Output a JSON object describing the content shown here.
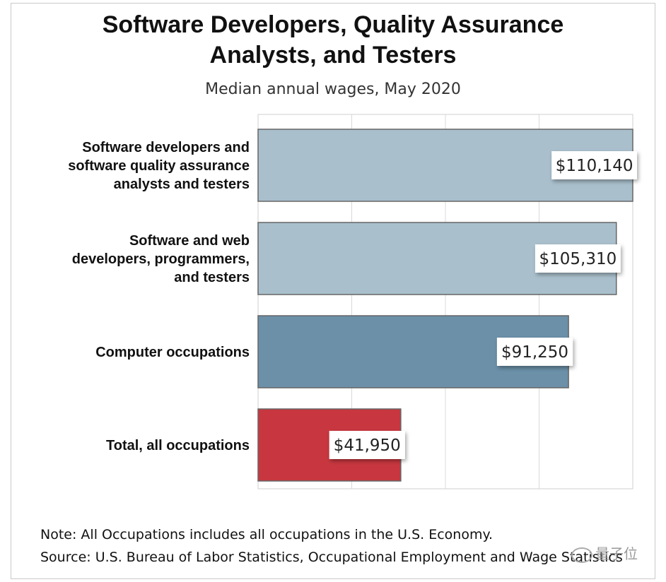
{
  "header": {
    "title_line1": "Software Developers, Quality Assurance",
    "title_line2": "Analysts, and Testers",
    "subtitle": "Median annual wages, May 2020"
  },
  "chart_data": {
    "type": "bar",
    "orientation": "horizontal",
    "title": "Software Developers, Quality Assurance Analysts, and Testers",
    "subtitle": "Median annual wages, May 2020",
    "categories": [
      [
        "Software developers and",
        "software quality assurance",
        "analysts and testers"
      ],
      [
        "Software and web",
        "developers, programmers,",
        "and testers"
      ],
      [
        "Computer occupations"
      ],
      [
        "Total, all occupations"
      ]
    ],
    "values": [
      110140,
      105310,
      91250,
      41950
    ],
    "value_labels": [
      "$110,140",
      "$105,310",
      "$91,250",
      "$41,950"
    ],
    "bar_colors": [
      "#a9bfcc",
      "#a9bfcc",
      "#6b90a8",
      "#c8373f"
    ],
    "xlim": [
      0,
      110140
    ],
    "grid": true,
    "legend": "none"
  },
  "footer": {
    "note": "Note: All Occupations includes all occupations in the U.S. Economy.",
    "source": "Source: U.S. Bureau of Labor Statistics, Occupational Employment and Wage Statistics"
  },
  "watermark": {
    "text": "量子位",
    "icon": "wechat-icon"
  }
}
